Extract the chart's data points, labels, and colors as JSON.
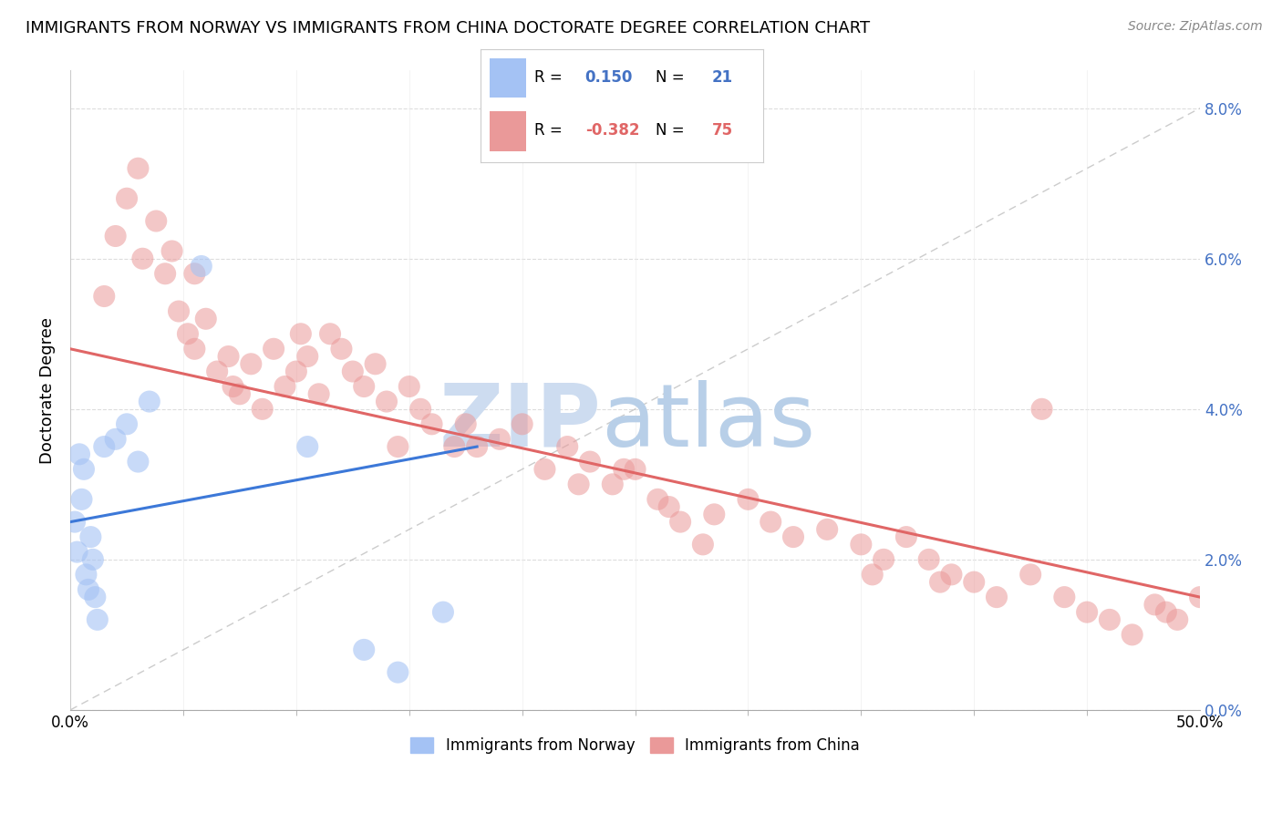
{
  "title": "IMMIGRANTS FROM NORWAY VS IMMIGRANTS FROM CHINA DOCTORATE DEGREE CORRELATION CHART",
  "source": "Source: ZipAtlas.com",
  "ylabel": "Doctorate Degree",
  "legend_blue_label": "Immigrants from Norway",
  "legend_pink_label": "Immigrants from China",
  "blue_color": "#a4c2f4",
  "pink_color": "#ea9999",
  "blue_line_color": "#3c78d8",
  "pink_line_color": "#e06666",
  "ref_line_color": "#aaaaaa",
  "norway_x": [
    0.2,
    0.3,
    0.4,
    0.5,
    0.6,
    0.7,
    0.8,
    0.9,
    1.0,
    1.1,
    1.2,
    1.5,
    2.0,
    2.5,
    3.0,
    3.5,
    5.8,
    10.5,
    13.0,
    14.5,
    16.5
  ],
  "norway_y": [
    2.5,
    2.1,
    3.4,
    2.8,
    3.2,
    1.8,
    1.6,
    2.3,
    2.0,
    1.5,
    1.2,
    3.5,
    3.6,
    3.8,
    3.3,
    4.1,
    5.9,
    3.5,
    0.8,
    0.5,
    1.3
  ],
  "china_x": [
    1.5,
    2.0,
    2.5,
    3.0,
    3.2,
    3.8,
    4.2,
    4.5,
    4.8,
    5.2,
    5.5,
    6.0,
    6.5,
    7.0,
    7.5,
    8.0,
    8.5,
    9.0,
    9.5,
    10.0,
    10.5,
    11.0,
    11.5,
    12.0,
    12.5,
    13.0,
    13.5,
    14.0,
    15.0,
    15.5,
    16.0,
    17.0,
    17.5,
    18.0,
    19.0,
    20.0,
    21.0,
    22.0,
    23.0,
    24.0,
    25.0,
    26.0,
    27.0,
    28.5,
    30.0,
    31.0,
    32.0,
    33.5,
    35.0,
    36.0,
    37.0,
    38.0,
    39.0,
    40.0,
    41.0,
    42.5,
    44.0,
    45.0,
    46.0,
    47.0,
    48.0,
    49.0,
    50.0,
    28.0,
    35.5,
    7.2,
    14.5,
    5.5,
    10.2,
    22.5,
    24.5,
    26.5,
    38.5,
    43.0,
    48.5
  ],
  "china_y": [
    5.5,
    6.3,
    6.8,
    7.2,
    6.0,
    6.5,
    5.8,
    6.1,
    5.3,
    5.0,
    4.8,
    5.2,
    4.5,
    4.7,
    4.2,
    4.6,
    4.0,
    4.8,
    4.3,
    4.5,
    4.7,
    4.2,
    5.0,
    4.8,
    4.5,
    4.3,
    4.6,
    4.1,
    4.3,
    4.0,
    3.8,
    3.5,
    3.8,
    3.5,
    3.6,
    3.8,
    3.2,
    3.5,
    3.3,
    3.0,
    3.2,
    2.8,
    2.5,
    2.6,
    2.8,
    2.5,
    2.3,
    2.4,
    2.2,
    2.0,
    2.3,
    2.0,
    1.8,
    1.7,
    1.5,
    1.8,
    1.5,
    1.3,
    1.2,
    1.0,
    1.4,
    1.2,
    1.5,
    2.2,
    1.8,
    4.3,
    3.5,
    5.8,
    5.0,
    3.0,
    3.2,
    2.7,
    1.7,
    4.0,
    1.3
  ],
  "xlim": [
    0,
    50
  ],
  "ylim": [
    0,
    8.5
  ],
  "ytick_positions": [
    0,
    2,
    4,
    6,
    8
  ],
  "yticklabels": [
    "0.0%",
    "2.0%",
    "4.0%",
    "6.0%",
    "8.0%"
  ],
  "xtick_major": [
    0,
    50
  ],
  "xtick_minor": [
    5,
    10,
    15,
    20,
    25,
    30,
    35,
    40,
    45
  ],
  "grid_color": "#dddddd",
  "norway_trend_x": [
    0,
    18
  ],
  "norway_trend_y": [
    2.5,
    3.5
  ],
  "china_trend_x": [
    0,
    50
  ],
  "china_trend_y": [
    4.8,
    1.5
  ],
  "ref_line_x": [
    0,
    50
  ],
  "ref_line_y": [
    0,
    8
  ],
  "watermark_zip_color": "#cddcf0",
  "watermark_atlas_color": "#b8cfe8"
}
